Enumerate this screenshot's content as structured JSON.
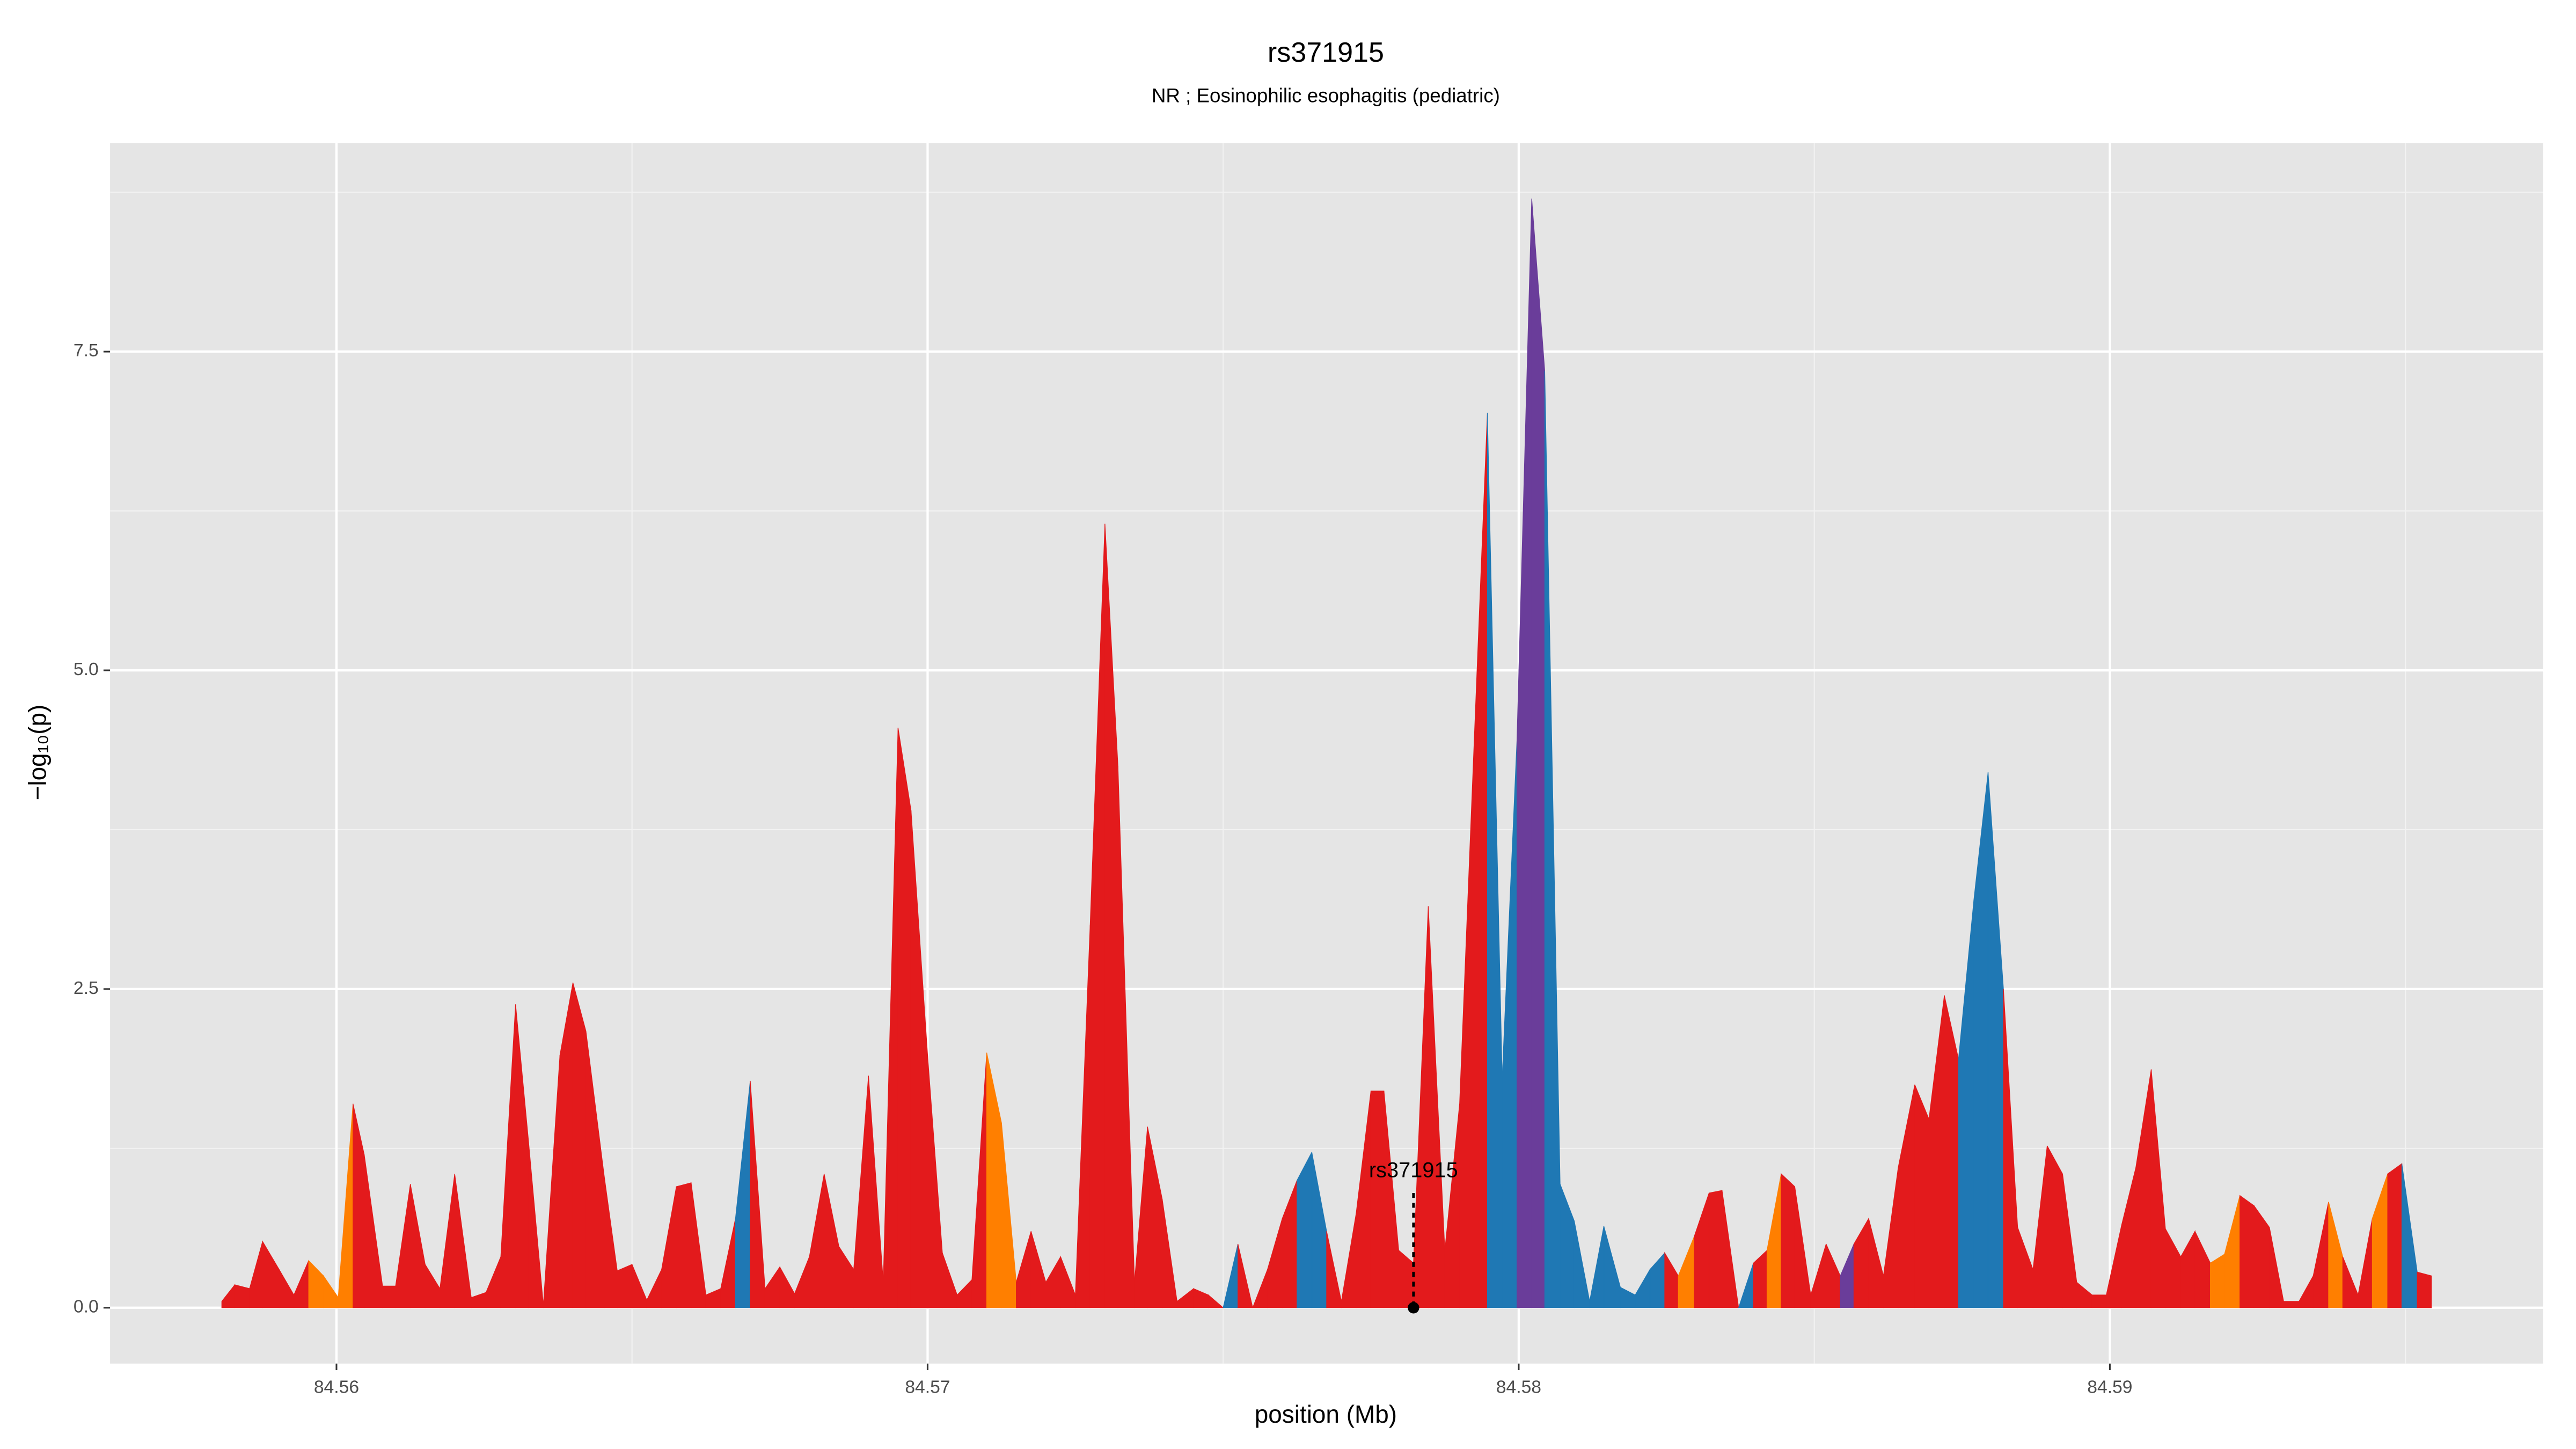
{
  "chart_data": {
    "type": "area",
    "title": "rs371915",
    "subtitle": "NR ; Eosinophilic esophagitis (pediatric)",
    "xlabel": "position (Mb)",
    "ylabel": "−log₁₀(p)",
    "xlim": [
      84.55617,
      84.59733
    ],
    "ylim": [
      -0.438,
      9.137
    ],
    "xticks": [
      84.56,
      84.57,
      84.58,
      84.59
    ],
    "x_minor_ticks": [
      84.565,
      84.575,
      84.585,
      84.595
    ],
    "yticks": [
      {
        "value": 0,
        "label": "0.0"
      },
      {
        "value": 2.5,
        "label": "2.5"
      },
      {
        "value": 5,
        "label": "5.0"
      },
      {
        "value": 7.5,
        "label": "7.5"
      }
    ],
    "y_minor_ticks": [
      1.25,
      3.75,
      6.25,
      8.75
    ],
    "grid": true,
    "x": [
      84.55806,
      84.55828,
      84.55853,
      84.55875,
      84.55903,
      84.55928,
      84.55953,
      84.55978,
      84.56003,
      84.56028,
      84.56047,
      84.56078,
      84.561,
      84.56125,
      84.5615,
      84.56175,
      84.562,
      84.56228,
      84.56253,
      84.56278,
      84.56303,
      84.56325,
      84.5635,
      84.56378,
      84.564,
      84.56422,
      84.56453,
      84.56475,
      84.565,
      84.56525,
      84.5655,
      84.56575,
      84.566,
      84.56625,
      84.5665,
      84.56675,
      84.567,
      84.56725,
      84.5675,
      84.56775,
      84.568,
      84.56825,
      84.5685,
      84.56875,
      84.569,
      84.56925,
      84.5695,
      84.56972,
      84.57,
      84.57025,
      84.5705,
      84.57075,
      84.571,
      84.57125,
      84.5715,
      84.57175,
      84.572,
      84.57225,
      84.5725,
      84.57275,
      84.573,
      84.57322,
      84.5735,
      84.57372,
      84.57397,
      84.57422,
      84.5745,
      84.57475,
      84.575,
      84.57525,
      84.5755,
      84.57575,
      84.576,
      84.57625,
      84.5765,
      84.57675,
      84.577,
      84.57725,
      84.5775,
      84.57772,
      84.57797,
      84.57822,
      84.57847,
      84.57875,
      84.579,
      84.57947,
      84.57972,
      84.57997,
      84.58022,
      84.58044,
      84.5807,
      84.58094,
      84.5812,
      84.58144,
      84.58172,
      84.58197,
      84.58222,
      84.58247,
      84.5827,
      84.58297,
      84.58322,
      84.58344,
      84.58372,
      84.58397,
      84.5842,
      84.58444,
      84.58467,
      84.58494,
      84.5852,
      84.58544,
      84.58567,
      84.58592,
      84.58617,
      84.58642,
      84.5867,
      84.58694,
      84.5872,
      84.58744,
      84.5877,
      84.58794,
      84.5882,
      84.58844,
      84.5887,
      84.58894,
      84.5892,
      84.58944,
      84.5897,
      84.58994,
      84.5902,
      84.59044,
      84.5907,
      84.59094,
      84.5912,
      84.59144,
      84.5917,
      84.59194,
      84.5922,
      84.59244,
      84.5927,
      84.59294,
      84.5932,
      84.59344,
      84.5937,
      84.59394,
      84.5942,
      84.59444,
      84.5947,
      84.59494,
      84.5952,
      84.59544
    ],
    "values": [
      0.05,
      0.18,
      0.15,
      0.52,
      0.3,
      0.1,
      0.37,
      0.25,
      0.08,
      1.6,
      1.2,
      0.17,
      0.17,
      0.97,
      0.34,
      0.15,
      1.05,
      0.08,
      0.12,
      0.4,
      2.38,
      1.3,
      0.02,
      1.98,
      2.55,
      2.17,
      1.03,
      0.29,
      0.34,
      0.06,
      0.3,
      0.95,
      0.98,
      0.1,
      0.15,
      0.7,
      1.78,
      0.15,
      0.32,
      0.11,
      0.4,
      1.05,
      0.48,
      0.3,
      1.82,
      0.2,
      4.55,
      3.9,
      1.98,
      0.43,
      0.1,
      0.22,
      2.0,
      1.45,
      0.2,
      0.6,
      0.2,
      0.4,
      0.1,
      3.0,
      6.15,
      4.25,
      0.2,
      1.42,
      0.85,
      0.05,
      0.15,
      0.1,
      0.0,
      0.5,
      0.0,
      0.3,
      0.7,
      1.0,
      1.22,
      0.6,
      0.05,
      0.74,
      1.7,
      1.7,
      0.45,
      0.35,
      3.15,
      0.45,
      1.6,
      7.02,
      1.8,
      4.45,
      8.7,
      7.35,
      0.97,
      0.68,
      0.05,
      0.64,
      0.16,
      0.1,
      0.3,
      0.43,
      0.25,
      0.56,
      0.9,
      0.92,
      0.0,
      0.35,
      0.45,
      1.05,
      0.95,
      0.1,
      0.5,
      0.25,
      0.5,
      0.7,
      0.25,
      1.1,
      1.75,
      1.48,
      2.45,
      1.95,
      3.2,
      4.2,
      2.5,
      0.63,
      0.3,
      1.27,
      1.05,
      0.2,
      0.1,
      0.1,
      0.65,
      1.1,
      1.87,
      0.62,
      0.4,
      0.6,
      0.35,
      0.42,
      0.88,
      0.8,
      0.63,
      0.05,
      0.05,
      0.25,
      0.83,
      0.4,
      0.1,
      0.7,
      1.05,
      1.13,
      0.28,
      0.25
    ],
    "colors": [
      "#e31a1c",
      "#e31a1c",
      "#e31a1c",
      "#e31a1c",
      "#e31a1c",
      "#e31a1c",
      "#ff7f00",
      "#ff7f00",
      "#ff7f00",
      "#e31a1c",
      "#e31a1c",
      "#e31a1c",
      "#e31a1c",
      "#e31a1c",
      "#e31a1c",
      "#e31a1c",
      "#e31a1c",
      "#e31a1c",
      "#e31a1c",
      "#e31a1c",
      "#e31a1c",
      "#e31a1c",
      "#e31a1c",
      "#e31a1c",
      "#e31a1c",
      "#e31a1c",
      "#e31a1c",
      "#e31a1c",
      "#e31a1c",
      "#e31a1c",
      "#e31a1c",
      "#e31a1c",
      "#e31a1c",
      "#e31a1c",
      "#e31a1c",
      "#1f78b4",
      "#e31a1c",
      "#e31a1c",
      "#e31a1c",
      "#e31a1c",
      "#e31a1c",
      "#e31a1c",
      "#e31a1c",
      "#e31a1c",
      "#e31a1c",
      "#e31a1c",
      "#e31a1c",
      "#e31a1c",
      "#e31a1c",
      "#e31a1c",
      "#e31a1c",
      "#e31a1c",
      "#ff7f00",
      "#ff7f00",
      "#e31a1c",
      "#e31a1c",
      "#e31a1c",
      "#e31a1c",
      "#e31a1c",
      "#e31a1c",
      "#e31a1c",
      "#e31a1c",
      "#e31a1c",
      "#e31a1c",
      "#e31a1c",
      "#e31a1c",
      "#e31a1c",
      "#e31a1c",
      "#1f78b4",
      "#e31a1c",
      "#e31a1c",
      "#e31a1c",
      "#e31a1c",
      "#1f78b4",
      "#1f78b4",
      "#e31a1c",
      "#e31a1c",
      "#e31a1c",
      "#e31a1c",
      "#e31a1c",
      "#e31a1c",
      "#e31a1c",
      "#e31a1c",
      "#e31a1c",
      "#e31a1c",
      "#1f78b4",
      "#1f78b4",
      "#6a3d9a",
      "#6a3d9a",
      "#1f78b4",
      "#1f78b4",
      "#1f78b4",
      "#1f78b4",
      "#1f78b4",
      "#1f78b4",
      "#1f78b4",
      "#1f78b4",
      "#e31a1c",
      "#ff7f00",
      "#e31a1c",
      "#e31a1c",
      "#e31a1c",
      "#1f78b4",
      "#e31a1c",
      "#ff7f00",
      "#e31a1c",
      "#e31a1c",
      "#e31a1c",
      "#e31a1c",
      "#6a3d9a",
      "#e31a1c",
      "#e31a1c",
      "#e31a1c",
      "#e31a1c",
      "#e31a1c",
      "#e31a1c",
      "#e31a1c",
      "#1f78b4",
      "#1f78b4",
      "#1f78b4",
      "#e31a1c",
      "#e31a1c",
      "#e31a1c",
      "#e31a1c",
      "#e31a1c",
      "#e31a1c",
      "#e31a1c",
      "#e31a1c",
      "#e31a1c",
      "#e31a1c",
      "#e31a1c",
      "#e31a1c",
      "#e31a1c",
      "#e31a1c",
      "#ff7f00",
      "#ff7f00",
      "#e31a1c",
      "#e31a1c",
      "#e31a1c",
      "#e31a1c",
      "#e31a1c",
      "#e31a1c",
      "#ff7f00",
      "#e31a1c",
      "#e31a1c",
      "#ff7f00",
      "#e31a1c",
      "#1f78b4",
      "#e31a1c",
      "#e31a1c"
    ],
    "annotation": {
      "label": "rs371915",
      "x": 84.57822,
      "y": 0.9,
      "marker_y": 0
    }
  }
}
